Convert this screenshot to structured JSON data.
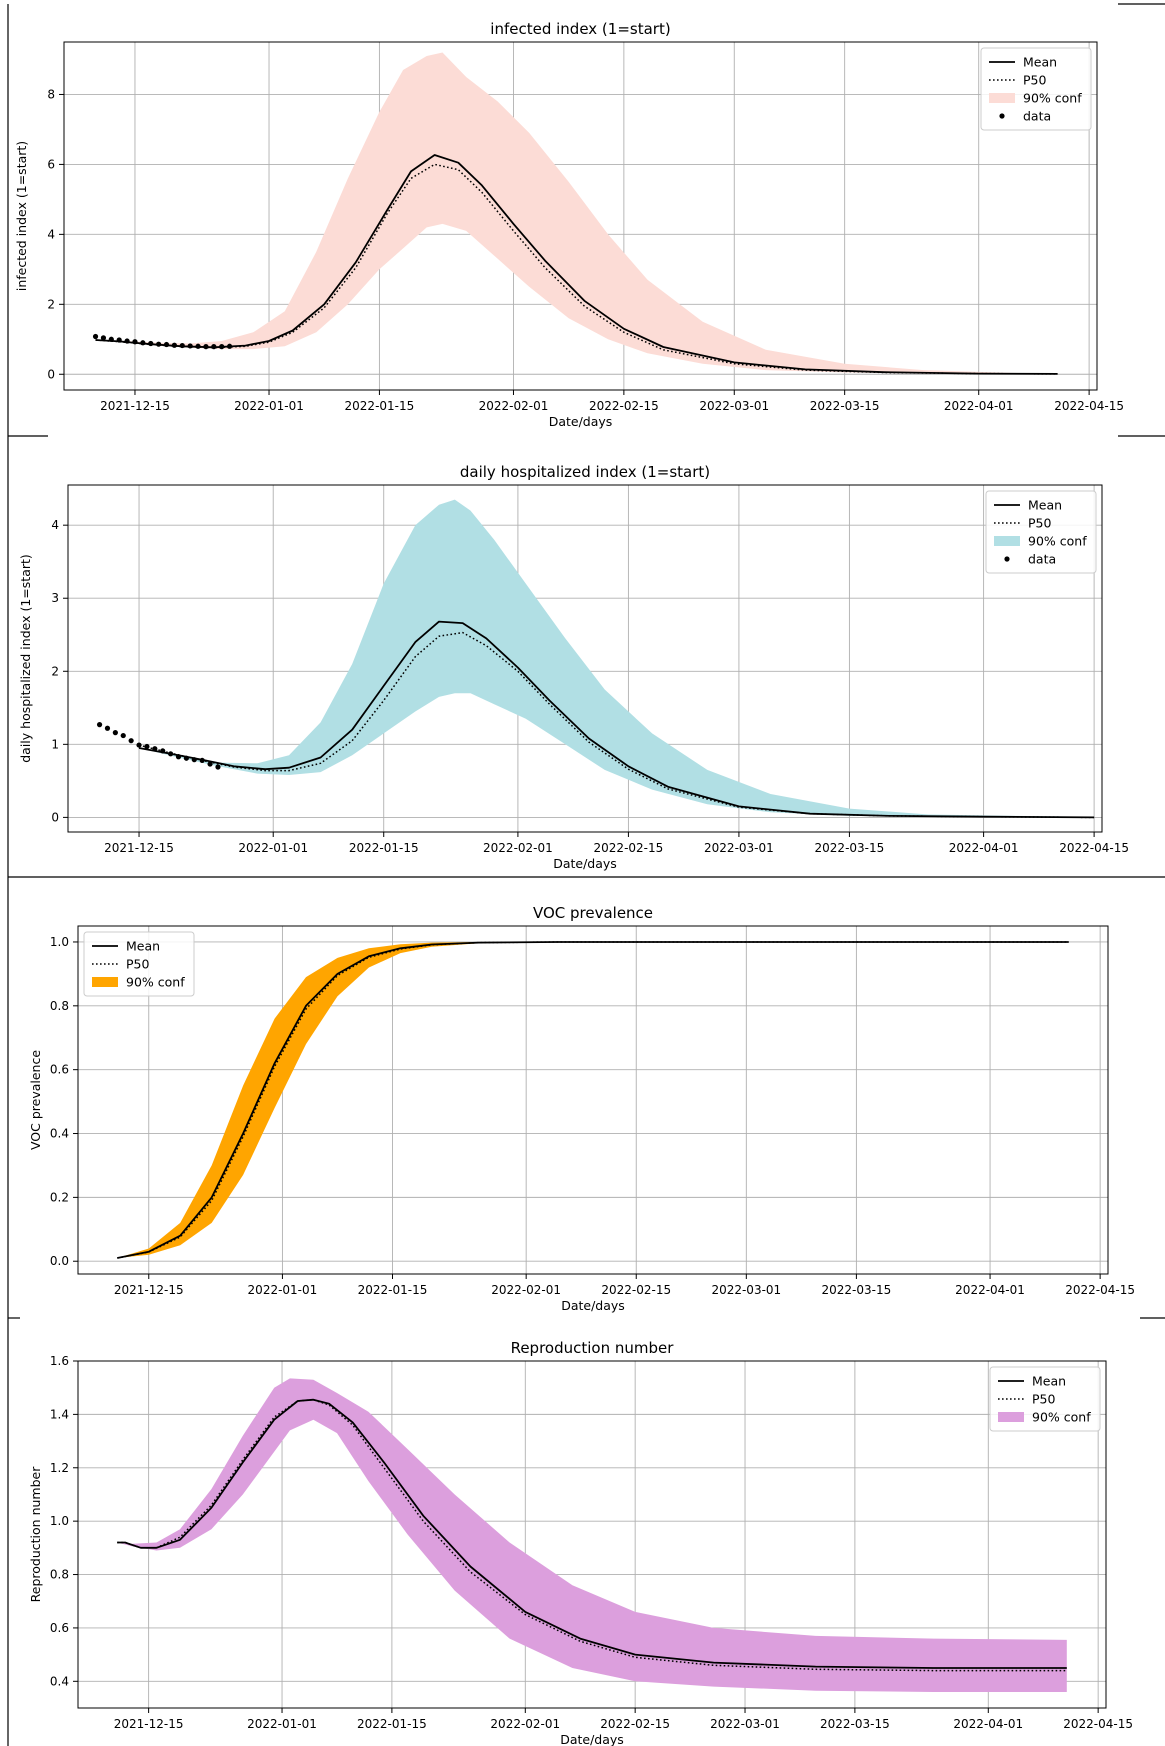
{
  "chart_data": [
    {
      "type": "line",
      "title": "infected index (1=start)",
      "xlabel": "Date/days",
      "ylabel": "infected index (1=start)",
      "x_tick_labels": [
        "2021-12-15",
        "2022-01-01",
        "2022-01-15",
        "2022-02-01",
        "2022-02-15",
        "2022-03-01",
        "2022-03-15",
        "2022-04-01",
        "2022-04-15"
      ],
      "y_tick_labels": [
        "0",
        "2",
        "4",
        "6",
        "8"
      ],
      "xlim": [
        "2021-12-06",
        "2022-04-16"
      ],
      "ylim": [
        -0.45,
        9.5
      ],
      "grid": true,
      "legend_position": "top-right",
      "band_color": "#fcdcd6",
      "legend": [
        "Mean",
        "P50",
        "90% conf",
        "data"
      ],
      "series": [
        {
          "name": "Mean",
          "style": "solid",
          "x": [
            "2021-12-10",
            "2021-12-13",
            "2021-12-17",
            "2021-12-21",
            "2021-12-25",
            "2021-12-29",
            "2022-01-01",
            "2022-01-04",
            "2022-01-08",
            "2022-01-12",
            "2022-01-16",
            "2022-01-19",
            "2022-01-22",
            "2022-01-25",
            "2022-01-28",
            "2022-02-01",
            "2022-02-05",
            "2022-02-10",
            "2022-02-15",
            "2022-02-20",
            "2022-03-01",
            "2022-03-10",
            "2022-03-20",
            "2022-04-01",
            "2022-04-11"
          ],
          "y": [
            0.98,
            0.94,
            0.86,
            0.8,
            0.77,
            0.82,
            0.95,
            1.25,
            2.0,
            3.2,
            4.7,
            5.8,
            6.27,
            6.05,
            5.4,
            4.3,
            3.25,
            2.1,
            1.3,
            0.78,
            0.34,
            0.14,
            0.06,
            0.02,
            0.01
          ]
        },
        {
          "name": "P50",
          "style": "dotted",
          "x": [
            "2021-12-10",
            "2021-12-13",
            "2021-12-17",
            "2021-12-21",
            "2021-12-25",
            "2021-12-29",
            "2022-01-01",
            "2022-01-04",
            "2022-01-08",
            "2022-01-12",
            "2022-01-16",
            "2022-01-19",
            "2022-01-22",
            "2022-01-25",
            "2022-01-28",
            "2022-02-01",
            "2022-02-05",
            "2022-02-10",
            "2022-02-15",
            "2022-02-20",
            "2022-03-01",
            "2022-03-10",
            "2022-03-20",
            "2022-04-01",
            "2022-04-11"
          ],
          "y": [
            0.98,
            0.93,
            0.85,
            0.79,
            0.76,
            0.8,
            0.92,
            1.2,
            1.9,
            3.05,
            4.6,
            5.6,
            6.0,
            5.85,
            5.2,
            4.1,
            3.05,
            1.95,
            1.2,
            0.7,
            0.3,
            0.12,
            0.05,
            0.02,
            0.01
          ]
        },
        {
          "name": "data",
          "style": "points",
          "x": [
            "2021-12-10",
            "2021-12-11",
            "2021-12-12",
            "2021-12-13",
            "2021-12-14",
            "2021-12-15",
            "2021-12-16",
            "2021-12-17",
            "2021-12-18",
            "2021-12-19",
            "2021-12-20",
            "2021-12-21",
            "2021-12-22",
            "2021-12-23",
            "2021-12-24",
            "2021-12-25",
            "2021-12-26",
            "2021-12-27"
          ],
          "y": [
            1.08,
            1.04,
            1.0,
            0.98,
            0.95,
            0.93,
            0.9,
            0.88,
            0.86,
            0.85,
            0.83,
            0.82,
            0.81,
            0.8,
            0.79,
            0.79,
            0.79,
            0.8
          ]
        }
      ],
      "band": {
        "name": "90% conf",
        "x": [
          "2021-12-10",
          "2021-12-14",
          "2021-12-18",
          "2021-12-22",
          "2021-12-26",
          "2021-12-30",
          "2022-01-03",
          "2022-01-07",
          "2022-01-11",
          "2022-01-15",
          "2022-01-18",
          "2022-01-21",
          "2022-01-23",
          "2022-01-26",
          "2022-01-30",
          "2022-02-03",
          "2022-02-08",
          "2022-02-13",
          "2022-02-18",
          "2022-02-25",
          "2022-03-05",
          "2022-03-15",
          "2022-03-25",
          "2022-04-05",
          "2022-04-11"
        ],
        "lower": [
          0.98,
          0.9,
          0.82,
          0.76,
          0.72,
          0.72,
          0.8,
          1.2,
          2.0,
          3.0,
          3.6,
          4.2,
          4.3,
          4.1,
          3.3,
          2.5,
          1.6,
          1.0,
          0.6,
          0.3,
          0.12,
          0.05,
          0.02,
          0.01,
          0.0
        ],
        "upper": [
          0.98,
          0.95,
          0.9,
          0.88,
          0.95,
          1.2,
          1.8,
          3.5,
          5.6,
          7.5,
          8.7,
          9.1,
          9.2,
          8.5,
          7.8,
          6.9,
          5.5,
          4.0,
          2.7,
          1.5,
          0.7,
          0.3,
          0.12,
          0.04,
          0.02
        ]
      }
    },
    {
      "type": "line",
      "title": "daily hospitalized index (1=start)",
      "xlabel": "Date/days",
      "ylabel": "daily hospitalized index (1=start)",
      "x_tick_labels": [
        "2021-12-15",
        "2022-01-01",
        "2022-01-15",
        "2022-02-01",
        "2022-02-15",
        "2022-03-01",
        "2022-03-15",
        "2022-04-01",
        "2022-04-15"
      ],
      "y_tick_labels": [
        "0",
        "1",
        "2",
        "3",
        "4"
      ],
      "xlim": [
        "2021-12-06",
        "2022-04-16"
      ],
      "ylim": [
        -0.2,
        4.55
      ],
      "grid": true,
      "legend_position": "top-right",
      "band_color": "#b1dfe4",
      "legend": [
        "Mean",
        "P50",
        "90% conf",
        "data"
      ],
      "series": [
        {
          "name": "Mean",
          "style": "solid",
          "x": [
            "2021-12-15",
            "2021-12-19",
            "2021-12-23",
            "2021-12-27",
            "2021-12-31",
            "2022-01-03",
            "2022-01-07",
            "2022-01-11",
            "2022-01-15",
            "2022-01-19",
            "2022-01-22",
            "2022-01-25",
            "2022-01-28",
            "2022-02-01",
            "2022-02-05",
            "2022-02-10",
            "2022-02-15",
            "2022-02-20",
            "2022-03-01",
            "2022-03-10",
            "2022-03-20",
            "2022-04-01",
            "2022-04-15"
          ],
          "y": [
            0.95,
            0.87,
            0.79,
            0.7,
            0.66,
            0.68,
            0.82,
            1.2,
            1.8,
            2.4,
            2.68,
            2.66,
            2.45,
            2.05,
            1.6,
            1.08,
            0.7,
            0.42,
            0.15,
            0.05,
            0.02,
            0.01,
            0.0
          ]
        },
        {
          "name": "P50",
          "style": "dotted",
          "x": [
            "2021-12-15",
            "2021-12-19",
            "2021-12-23",
            "2021-12-27",
            "2021-12-31",
            "2022-01-03",
            "2022-01-07",
            "2022-01-11",
            "2022-01-15",
            "2022-01-19",
            "2022-01-22",
            "2022-01-25",
            "2022-01-28",
            "2022-02-01",
            "2022-02-05",
            "2022-02-10",
            "2022-02-15",
            "2022-02-20",
            "2022-03-01",
            "2022-03-10",
            "2022-03-20",
            "2022-04-01",
            "2022-04-15"
          ],
          "y": [
            0.99,
            0.88,
            0.78,
            0.69,
            0.64,
            0.64,
            0.74,
            1.05,
            1.6,
            2.2,
            2.48,
            2.53,
            2.35,
            2.0,
            1.55,
            1.03,
            0.66,
            0.39,
            0.14,
            0.05,
            0.02,
            0.01,
            0.0
          ]
        },
        {
          "name": "data",
          "style": "points",
          "x": [
            "2021-12-10",
            "2021-12-11",
            "2021-12-12",
            "2021-12-13",
            "2021-12-14",
            "2021-12-15",
            "2021-12-16",
            "2021-12-17",
            "2021-12-18",
            "2021-12-19",
            "2021-12-20",
            "2021-12-21",
            "2021-12-22",
            "2021-12-23",
            "2021-12-24",
            "2021-12-25"
          ],
          "y": [
            1.27,
            1.22,
            1.16,
            1.12,
            1.05,
            0.99,
            0.97,
            0.94,
            0.91,
            0.87,
            0.83,
            0.81,
            0.79,
            0.78,
            0.73,
            0.69
          ]
        }
      ],
      "band": {
        "name": "90% conf",
        "x": [
          "2021-12-15",
          "2021-12-20",
          "2021-12-25",
          "2021-12-30",
          "2022-01-03",
          "2022-01-07",
          "2022-01-11",
          "2022-01-15",
          "2022-01-19",
          "2022-01-22",
          "2022-01-24",
          "2022-01-26",
          "2022-01-29",
          "2022-02-02",
          "2022-02-07",
          "2022-02-12",
          "2022-02-18",
          "2022-02-25",
          "2022-03-05",
          "2022-03-15",
          "2022-03-25",
          "2022-04-05",
          "2022-04-15"
        ],
        "lower": [
          0.95,
          0.82,
          0.7,
          0.6,
          0.58,
          0.62,
          0.85,
          1.15,
          1.45,
          1.65,
          1.7,
          1.7,
          1.55,
          1.35,
          1.0,
          0.65,
          0.38,
          0.18,
          0.07,
          0.02,
          0.01,
          0.0,
          0.0
        ],
        "upper": [
          0.95,
          0.85,
          0.75,
          0.74,
          0.85,
          1.3,
          2.1,
          3.2,
          4.0,
          4.28,
          4.35,
          4.2,
          3.8,
          3.2,
          2.45,
          1.75,
          1.15,
          0.65,
          0.32,
          0.12,
          0.04,
          0.02,
          0.01
        ]
      }
    },
    {
      "type": "line",
      "title": "VOC prevalence",
      "xlabel": "Date/days",
      "ylabel": "VOC prevalence",
      "x_tick_labels": [
        "2021-12-15",
        "2022-01-01",
        "2022-01-15",
        "2022-02-01",
        "2022-02-15",
        "2022-03-01",
        "2022-03-15",
        "2022-04-01",
        "2022-04-15"
      ],
      "y_tick_labels": [
        "0.0",
        "0.2",
        "0.4",
        "0.6",
        "0.8",
        "1.0"
      ],
      "xlim": [
        "2021-12-06",
        "2022-04-16"
      ],
      "ylim": [
        -0.04,
        1.05
      ],
      "grid": true,
      "legend_position": "top-left",
      "band_color": "#ffa500",
      "legend": [
        "Mean",
        "P50",
        "90% conf"
      ],
      "series": [
        {
          "name": "Mean",
          "style": "solid",
          "x": [
            "2021-12-11",
            "2021-12-15",
            "2021-12-19",
            "2021-12-23",
            "2021-12-27",
            "2021-12-31",
            "2022-01-04",
            "2022-01-08",
            "2022-01-12",
            "2022-01-16",
            "2022-01-20",
            "2022-01-26",
            "2022-02-05",
            "2022-04-11"
          ],
          "y": [
            0.01,
            0.03,
            0.08,
            0.2,
            0.4,
            0.62,
            0.8,
            0.9,
            0.955,
            0.98,
            0.992,
            0.998,
            1.0,
            1.0
          ]
        },
        {
          "name": "P50",
          "style": "dotted",
          "x": [
            "2021-12-11",
            "2021-12-15",
            "2021-12-19",
            "2021-12-23",
            "2021-12-27",
            "2021-12-31",
            "2022-01-04",
            "2022-01-08",
            "2022-01-12",
            "2022-01-16",
            "2022-01-20",
            "2022-01-26",
            "2022-02-05",
            "2022-04-11"
          ],
          "y": [
            0.01,
            0.029,
            0.076,
            0.19,
            0.39,
            0.61,
            0.79,
            0.895,
            0.952,
            0.978,
            0.991,
            0.998,
            1.0,
            1.0
          ]
        }
      ],
      "band": {
        "name": "90% conf",
        "x": [
          "2021-12-11",
          "2021-12-15",
          "2021-12-19",
          "2021-12-23",
          "2021-12-27",
          "2021-12-31",
          "2022-01-04",
          "2022-01-08",
          "2022-01-12",
          "2022-01-16",
          "2022-01-20",
          "2022-01-26",
          "2022-02-01"
        ],
        "lower": [
          0.01,
          0.02,
          0.05,
          0.12,
          0.27,
          0.48,
          0.68,
          0.83,
          0.92,
          0.965,
          0.985,
          0.996,
          1.0
        ],
        "upper": [
          0.01,
          0.04,
          0.12,
          0.3,
          0.55,
          0.76,
          0.89,
          0.95,
          0.98,
          0.993,
          0.998,
          1.0,
          1.0
        ]
      }
    },
    {
      "type": "line",
      "title": "Reproduction number",
      "xlabel": "Date/days",
      "ylabel": "Reproduction number",
      "x_tick_labels": [
        "2021-12-15",
        "2022-01-01",
        "2022-01-15",
        "2022-02-01",
        "2022-02-15",
        "2022-03-01",
        "2022-03-15",
        "2022-04-01",
        "2022-04-15"
      ],
      "y_tick_labels": [
        "0.4",
        "0.6",
        "0.8",
        "1.0",
        "1.2",
        "1.4",
        "1.6"
      ],
      "xlim": [
        "2021-12-06",
        "2022-04-16"
      ],
      "ylim": [
        0.3,
        1.6
      ],
      "grid": true,
      "legend_position": "top-right",
      "band_color": "#dc9fdd",
      "legend": [
        "Mean",
        "P50",
        "90% conf"
      ],
      "series": [
        {
          "name": "Mean",
          "style": "solid",
          "x": [
            "2021-12-11",
            "2021-12-12",
            "2021-12-14",
            "2021-12-16",
            "2021-12-19",
            "2021-12-23",
            "2021-12-27",
            "2021-12-31",
            "2022-01-03",
            "2022-01-05",
            "2022-01-07",
            "2022-01-10",
            "2022-01-14",
            "2022-01-19",
            "2022-01-25",
            "2022-02-01",
            "2022-02-08",
            "2022-02-15",
            "2022-02-25",
            "2022-03-10",
            "2022-03-25",
            "2022-04-11"
          ],
          "y": [
            0.92,
            0.92,
            0.9,
            0.9,
            0.93,
            1.05,
            1.22,
            1.38,
            1.45,
            1.455,
            1.44,
            1.37,
            1.22,
            1.02,
            0.83,
            0.66,
            0.56,
            0.5,
            0.47,
            0.455,
            0.45,
            0.45
          ]
        },
        {
          "name": "P50",
          "style": "dotted",
          "x": [
            "2021-12-11",
            "2021-12-12",
            "2021-12-14",
            "2021-12-16",
            "2021-12-19",
            "2021-12-23",
            "2021-12-27",
            "2021-12-31",
            "2022-01-03",
            "2022-01-05",
            "2022-01-07",
            "2022-01-10",
            "2022-01-14",
            "2022-01-19",
            "2022-01-25",
            "2022-02-01",
            "2022-02-08",
            "2022-02-15",
            "2022-02-25",
            "2022-03-10",
            "2022-03-25",
            "2022-04-11"
          ],
          "y": [
            0.92,
            0.92,
            0.9,
            0.9,
            0.94,
            1.06,
            1.23,
            1.39,
            1.45,
            1.455,
            1.435,
            1.36,
            1.2,
            1.0,
            0.81,
            0.65,
            0.55,
            0.49,
            0.46,
            0.445,
            0.44,
            0.44
          ]
        }
      ],
      "band": {
        "name": "90% conf",
        "x": [
          "2021-12-11",
          "2021-12-13",
          "2021-12-16",
          "2021-12-19",
          "2021-12-23",
          "2021-12-27",
          "2021-12-31",
          "2022-01-02",
          "2022-01-05",
          "2022-01-08",
          "2022-01-12",
          "2022-01-17",
          "2022-01-23",
          "2022-01-30",
          "2022-02-07",
          "2022-02-15",
          "2022-02-25",
          "2022-03-10",
          "2022-03-25",
          "2022-04-11"
        ],
        "lower": [
          0.92,
          0.905,
          0.89,
          0.9,
          0.97,
          1.1,
          1.26,
          1.34,
          1.38,
          1.33,
          1.15,
          0.95,
          0.74,
          0.56,
          0.45,
          0.4,
          0.38,
          0.365,
          0.36,
          0.36
        ],
        "upper": [
          0.92,
          0.915,
          0.92,
          0.97,
          1.12,
          1.32,
          1.5,
          1.535,
          1.53,
          1.48,
          1.41,
          1.27,
          1.1,
          0.92,
          0.76,
          0.66,
          0.6,
          0.57,
          0.56,
          0.555
        ]
      }
    }
  ]
}
